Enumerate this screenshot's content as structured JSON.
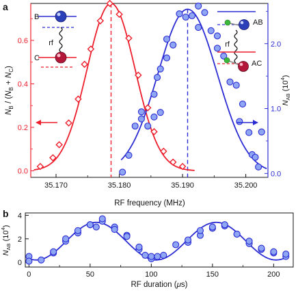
{
  "colors": {
    "red": "#ee1d2b",
    "blue": "#2b2bd4",
    "marker_fill": "#8ea6f3",
    "black": "#111111"
  },
  "chart_data": [
    {
      "panel": "a",
      "type": "scatter",
      "xlabel": "RF frequency (MHz)",
      "xlim": [
        35.166,
        35.2035
      ],
      "x_ticks": [
        "35.170",
        "35.180",
        "35.190",
        "35.200"
      ],
      "x_tick_values": [
        35.17,
        35.18,
        35.19,
        35.2
      ],
      "ylabel_left": "N_B / (N_B + N_C)",
      "ylabel_left_parts": {
        "n": "N",
        "sub_b": "B",
        "slash": " / (",
        "n2": "N",
        "sub_b2": "B",
        "plus": " + ",
        "n3": "N",
        "sub_c": "C",
        "close": ")"
      },
      "ylim_left": [
        -0.03,
        0.77
      ],
      "y_left_ticks": [
        "0.0",
        "0.2",
        "0.4",
        "0.6"
      ],
      "y_left_tick_values": [
        0.0,
        0.2,
        0.4,
        0.6
      ],
      "ylabel_right": "N_AB (10^4)",
      "ylabel_right_parts": {
        "n": "N",
        "sub": "AB",
        "unit": " (10",
        "exp": "4",
        "close": ")"
      },
      "ylim_right": [
        -0.06,
        2.62
      ],
      "y_right_ticks": [
        "0.0",
        "1.0",
        "2.0"
      ],
      "y_right_tick_values": [
        0.0,
        1.0,
        2.0
      ],
      "series": [
        {
          "axis": "left",
          "marker": "diamond",
          "color": "red",
          "points": [
            [
              35.1675,
              0.02
            ],
            [
              35.1695,
              0.06
            ],
            [
              35.1705,
              0.12
            ],
            [
              35.172,
              0.22
            ],
            [
              35.1735,
              0.33
            ],
            [
              35.1745,
              0.49
            ],
            [
              35.1755,
              0.56
            ],
            [
              35.177,
              0.69
            ],
            [
              35.1785,
              0.77
            ],
            [
              35.18,
              0.72
            ],
            [
              35.1815,
              0.61
            ],
            [
              35.183,
              0.44
            ],
            [
              35.1845,
              0.29
            ],
            [
              35.1855,
              0.18
            ],
            [
              35.187,
              0.09
            ],
            [
              35.1885,
              0.04
            ],
            [
              35.19,
              0.02
            ]
          ]
        },
        {
          "axis": "right",
          "marker": "circle",
          "color": "blue",
          "points": [
            [
              35.1805,
              0.02
            ],
            [
              35.1815,
              0.28
            ],
            [
              35.1825,
              0.73
            ],
            [
              35.1835,
              0.84
            ],
            [
              35.1835,
              0.95
            ],
            [
              35.1845,
              0.73
            ],
            [
              35.1855,
              0.87
            ],
            [
              35.1865,
              0.94
            ],
            [
              35.186,
              1.48
            ],
            [
              35.1855,
              1.22
            ],
            [
              35.1865,
              1.61
            ],
            [
              35.1875,
              1.78
            ],
            [
              35.1875,
              2.07
            ],
            [
              35.1885,
              1.98
            ],
            [
              35.1895,
              2.46
            ],
            [
              35.1905,
              2.41
            ],
            [
              35.1915,
              2.43
            ],
            [
              35.1925,
              2.58
            ],
            [
              35.1925,
              2.25
            ],
            [
              35.1935,
              2.48
            ],
            [
              35.1945,
              2.2
            ],
            [
              35.1955,
              2.12
            ],
            [
              35.1955,
              1.93
            ],
            [
              35.1965,
              1.81
            ],
            [
              35.1975,
              1.41
            ],
            [
              35.1985,
              1.36
            ],
            [
              35.199,
              0.8
            ],
            [
              35.1995,
              1.07
            ],
            [
              35.2005,
              0.63
            ],
            [
              35.201,
              0.29
            ],
            [
              35.2015,
              0.25
            ],
            [
              35.202,
              0.1
            ],
            [
              35.2025,
              0.64
            ]
          ]
        }
      ],
      "fits": [
        {
          "axis": "left",
          "color": "red",
          "center": 35.1787,
          "amplitude": 0.77,
          "sigma": 0.0038
        },
        {
          "axis": "right",
          "color": "blue",
          "center": 35.1908,
          "amplitude": 2.53,
          "sigma": 0.0047
        }
      ],
      "markers": [
        {
          "color": "red",
          "x": 35.1787
        },
        {
          "color": "blue",
          "x": 35.1908
        }
      ],
      "annotations": {
        "panel_label": "a",
        "left_diagram": {
          "top": "B",
          "bottom": "C",
          "mid": "rf"
        },
        "right_diagram": {
          "top": "AB",
          "bottom": "AC",
          "mid": "rf"
        }
      }
    },
    {
      "panel": "b",
      "type": "scatter",
      "xlabel": "RF duration (μs)",
      "xlabel_parts": {
        "pre": "RF duration (",
        "mu": "μ",
        "post": "s)"
      },
      "xlim": [
        -3,
        216
      ],
      "x_ticks": [
        "0",
        "50",
        "100",
        "150",
        "200"
      ],
      "x_tick_values": [
        0,
        50,
        100,
        150,
        200
      ],
      "ylabel": "N_AB (10^4)",
      "ylabel_parts": {
        "n": "N",
        "sub": "AB",
        "unit": " (10",
        "exp": "4",
        "close": ")"
      },
      "ylim": [
        -0.4,
        4.2
      ],
      "y_ticks": [
        "0",
        "2",
        "4"
      ],
      "y_tick_values": [
        0,
        2,
        4
      ],
      "series": [
        {
          "marker": "circle",
          "color": "blue",
          "points": [
            [
              0,
              0.5
            ],
            [
              0,
              0.1
            ],
            [
              10,
              0.2
            ],
            [
              20,
              0.8
            ],
            [
              20,
              0.9
            ],
            [
              30,
              1.8
            ],
            [
              30,
              2.0
            ],
            [
              40,
              2.5
            ],
            [
              40,
              2.7
            ],
            [
              50,
              3.2
            ],
            [
              50,
              3.2
            ],
            [
              55,
              3.0
            ],
            [
              60,
              3.5
            ],
            [
              60,
              3.7
            ],
            [
              70,
              3.0
            ],
            [
              70,
              2.8
            ],
            [
              80,
              2.3
            ],
            [
              80,
              2.2
            ],
            [
              90,
              1.1
            ],
            [
              90,
              1.3
            ],
            [
              95,
              0.6
            ],
            [
              100,
              0.3
            ],
            [
              100,
              0.5
            ],
            [
              105,
              0.5
            ],
            [
              110,
              0.6
            ],
            [
              120,
              1.5
            ],
            [
              130,
              1.7
            ],
            [
              130,
              1.9
            ],
            [
              140,
              2.3
            ],
            [
              140,
              2.7
            ],
            [
              150,
              2.9
            ],
            [
              150,
              3.0
            ],
            [
              160,
              3.1
            ],
            [
              160,
              3.2
            ],
            [
              170,
              2.4
            ],
            [
              170,
              2.4
            ],
            [
              180,
              1.6
            ],
            [
              180,
              1.8
            ],
            [
              190,
              1.1
            ],
            [
              190,
              1.2
            ],
            [
              200,
              0.8
            ],
            [
              200,
              0.9
            ],
            [
              210,
              0.5
            ],
            [
              210,
              0.7
            ]
          ]
        }
      ],
      "fit": {
        "color": "blue",
        "offset": 1.8,
        "amplitude": 1.6,
        "period": 98,
        "phase_x": 55
      },
      "annotations": {
        "panel_label": "b"
      }
    }
  ]
}
